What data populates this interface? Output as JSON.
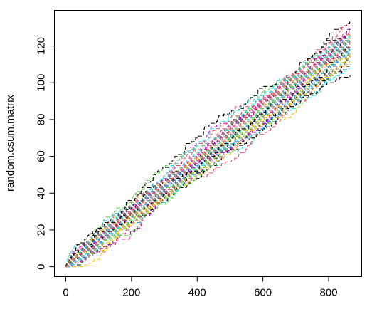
{
  "chart_data": {
    "type": "line",
    "title": "",
    "xlabel": "",
    "ylabel": "random.csum.matrix",
    "xlim": [
      0,
      866
    ],
    "ylim": [
      0,
      134
    ],
    "x_ticks": [
      0,
      200,
      400,
      600,
      800
    ],
    "y_ticks": [
      0,
      20,
      40,
      60,
      80,
      100,
      120
    ],
    "x_tick_labels": [
      "0",
      "200",
      "400",
      "600",
      "800"
    ],
    "y_tick_labels": [
      "0",
      "20",
      "40",
      "60",
      "80",
      "100",
      "120"
    ],
    "grid": false,
    "legend": "none",
    "n_points": 866,
    "series_colors": [
      "#000000",
      "#DF536B",
      "#61D04F",
      "#2297E6",
      "#28E2E5",
      "#CD0BBC",
      "#F5C710",
      "#9E9E9E"
    ],
    "series_final_values": [
      133,
      121,
      126,
      118,
      124,
      129,
      115,
      122,
      110,
      127,
      119,
      125,
      113,
      128,
      120,
      116,
      123,
      131,
      117,
      122,
      108,
      124,
      126,
      119,
      114,
      121,
      127,
      118,
      125,
      120,
      112,
      123,
      129,
      116,
      122,
      119,
      125,
      121,
      117,
      124,
      104,
      126,
      120,
      118,
      123,
      128,
      115,
      121,
      119,
      122
    ]
  }
}
